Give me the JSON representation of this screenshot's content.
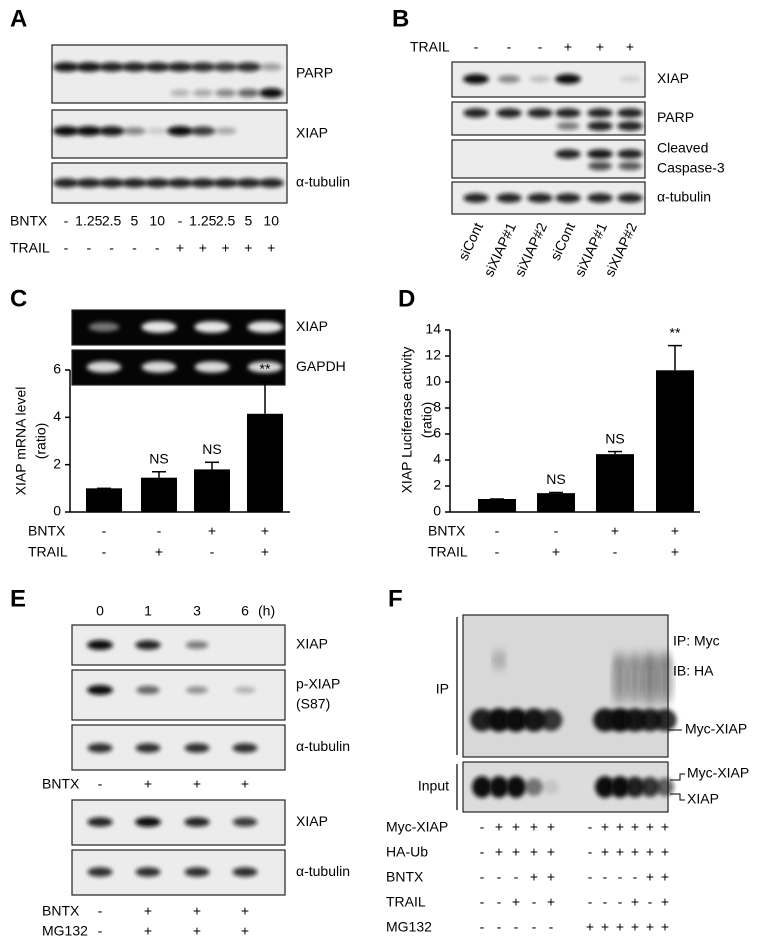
{
  "panels": [
    {
      "label": "A",
      "blots": [
        {
          "lines": [
            "PARP"
          ]
        },
        {
          "lines": [
            "XIAP"
          ]
        },
        {
          "lines": [
            "α-tubulin"
          ]
        }
      ],
      "rows": [
        {
          "name": "BNTX",
          "values": [
            "-",
            "1.25",
            "2.5",
            "5",
            "10",
            "-",
            "1.25",
            "2.5",
            "5",
            "10"
          ]
        },
        {
          "name": "TRAIL",
          "values": [
            "-",
            "-",
            "-",
            "-",
            "-",
            "+",
            "+",
            "+",
            "+",
            "+"
          ]
        }
      ]
    },
    {
      "label": "B",
      "rows": [
        {
          "name": "TRAIL",
          "values": [
            "-",
            "-",
            "-",
            "+",
            "+",
            "+"
          ]
        }
      ],
      "blots": [
        {
          "lines": [
            "XIAP"
          ]
        },
        {
          "lines": [
            "PARP"
          ]
        },
        {
          "lines": [
            "Cleaved",
            "Caspase-3"
          ]
        },
        {
          "lines": [
            "α-tubulin"
          ]
        }
      ],
      "lanes": [
        "siCont",
        "siXIAP#1",
        "siXIAP#2",
        "siCont",
        "siXIAP#1",
        "siXIAP#2"
      ]
    },
    {
      "label": "C",
      "blots": [
        {
          "lines": [
            "XIAP"
          ]
        },
        {
          "lines": [
            "GAPDH"
          ]
        }
      ]
    },
    {
      "label": "D"
    },
    {
      "label": "E",
      "time": [
        "0",
        "1",
        "3",
        "6"
      ],
      "time_unit": "(h)",
      "blots": [
        {
          "lines": [
            "XIAP"
          ]
        },
        {
          "lines": [
            "p-XIAP",
            "(S87)"
          ]
        },
        {
          "lines": [
            "α-tubulin"
          ]
        }
      ],
      "rows": [
        {
          "name": "BNTX",
          "values": [
            "-",
            "+",
            "+",
            "+"
          ]
        }
      ],
      "blots2": [
        {
          "lines": [
            "XIAP"
          ]
        },
        {
          "lines": [
            "α-tubulin"
          ]
        }
      ],
      "rows2": [
        {
          "name": "BNTX",
          "values": [
            "-",
            "+",
            "+",
            "+"
          ]
        },
        {
          "name": "MG132",
          "values": [
            "-",
            "+",
            "+",
            "+"
          ]
        }
      ]
    },
    {
      "label": "F",
      "ip_label": "IP",
      "input_label": "Input",
      "ip_notes": [
        "IP: Myc",
        "IB: HA",
        "Myc-XIAP"
      ],
      "input_notes": [
        "Myc-XIAP",
        "XIAP"
      ],
      "rows": [
        {
          "name": "Myc-XIAP",
          "values": [
            "-",
            "+",
            "+",
            "+",
            "+",
            "-",
            "+",
            "+",
            "+",
            "+",
            "+"
          ]
        },
        {
          "name": "HA-Ub",
          "values": [
            "-",
            "+",
            "+",
            "+",
            "+",
            "-",
            "+",
            "+",
            "+",
            "+",
            "+"
          ]
        },
        {
          "name": "BNTX",
          "values": [
            "-",
            "-",
            "-",
            "+",
            "+",
            "-",
            "-",
            "-",
            "-",
            "+",
            "+"
          ]
        },
        {
          "name": "TRAIL",
          "values": [
            "-",
            "-",
            "+",
            "-",
            "+",
            "-",
            "-",
            "-",
            "+",
            "-",
            "+"
          ]
        },
        {
          "name": "MG132",
          "values": [
            "-",
            "-",
            "-",
            "-",
            "-",
            "+",
            "+",
            "+",
            "+",
            "+",
            "+"
          ]
        }
      ]
    }
  ],
  "chart_data": [
    {
      "type": "bar",
      "ylabel": [
        "XIAP mRNA level",
        "(ratio)"
      ],
      "values": [
        1,
        1.45,
        1.8,
        4.15
      ],
      "errors": [
        0,
        0.25,
        0.3,
        1.35
      ],
      "annotations": [
        null,
        "NS",
        "NS",
        "**"
      ],
      "color": "#000000",
      "ylim": [
        0,
        6
      ],
      "yticks": [
        0,
        2,
        4,
        6
      ],
      "conditions": [
        {
          "name": "BNTX",
          "values": [
            "-",
            "-",
            "+",
            "+"
          ]
        },
        {
          "name": "TRAIL",
          "values": [
            "-",
            "+",
            "-",
            "+"
          ]
        }
      ]
    },
    {
      "type": "bar",
      "ylabel": [
        "XIAP Luciferase activity",
        "(ratio)"
      ],
      "values": [
        1,
        1.45,
        4.45,
        10.9
      ],
      "errors": [
        0,
        0.05,
        0.2,
        1.9
      ],
      "annotations": [
        null,
        "NS",
        "NS",
        "**"
      ],
      "color": "#000000",
      "ylim": [
        0,
        14
      ],
      "yticks": [
        0,
        2,
        4,
        6,
        8,
        10,
        12,
        14
      ],
      "conditions": [
        {
          "name": "BNTX",
          "values": [
            "-",
            "-",
            "+",
            "+"
          ]
        },
        {
          "name": "TRAIL",
          "values": [
            "-",
            "+",
            "-",
            "+"
          ]
        }
      ]
    }
  ]
}
